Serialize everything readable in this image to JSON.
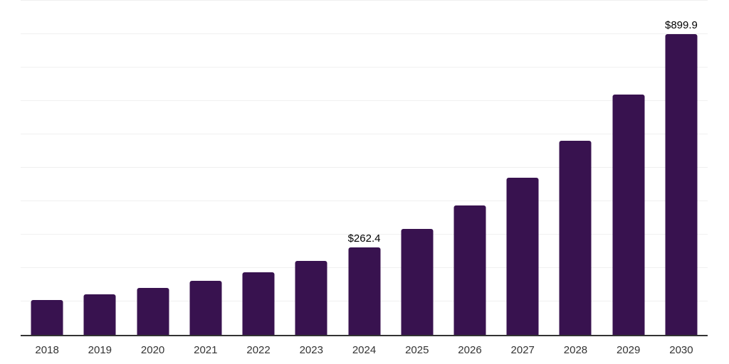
{
  "chart_style": {
    "background": "#ffffff",
    "bar_color": "#38124f",
    "grid_color": "#f0f0f0",
    "axis_line_color": "#333333",
    "tick_label_color": "#333333",
    "data_label_color": "#000000"
  },
  "chart_data": {
    "type": "bar",
    "title": "",
    "xlabel": "",
    "ylabel": "",
    "categories": [
      "2018",
      "2019",
      "2020",
      "2021",
      "2022",
      "2023",
      "2024",
      "2025",
      "2026",
      "2027",
      "2028",
      "2029",
      "2030"
    ],
    "values": [
      105,
      121,
      140,
      162,
      188,
      222,
      262.4,
      317,
      387,
      470,
      580,
      720,
      899.9
    ],
    "point_labels": [
      "",
      "",
      "",
      "",
      "",
      "",
      "$262.4",
      "",
      "",
      "",
      "",
      "",
      "$899.9"
    ],
    "ylim": [
      0,
      1000
    ],
    "grid": true,
    "grid_interval": 100,
    "y_axis_tick_labels_visible": false,
    "legend_position": "none"
  }
}
